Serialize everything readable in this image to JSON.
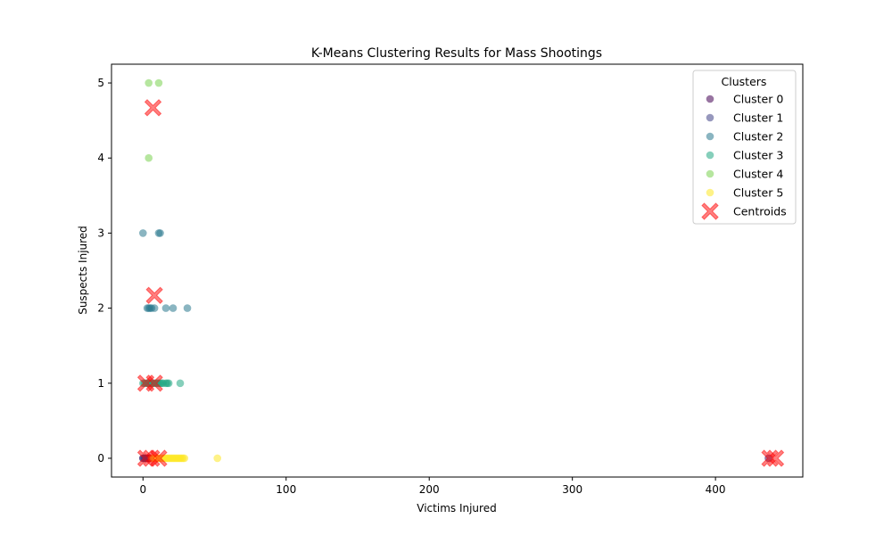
{
  "chart_data": {
    "type": "scatter",
    "title": "K-Means Clustering Results for Mass Shootings",
    "xlabel": "Victims Injured",
    "ylabel": "Suspects Injured",
    "xlim": [
      -22,
      461
    ],
    "ylim": [
      -0.25,
      5.25
    ],
    "xticks": [
      0,
      100,
      200,
      300,
      400
    ],
    "yticks": [
      0,
      1,
      2,
      3,
      4,
      5
    ],
    "grid": false,
    "legend": {
      "title": "Clusters",
      "placement": "top-right"
    },
    "series": [
      {
        "name": "Cluster 0",
        "color": "#440154",
        "points": [
          [
            0,
            0
          ],
          [
            1,
            0
          ],
          [
            2,
            0
          ],
          [
            3,
            0
          ],
          [
            4,
            0
          ],
          [
            5,
            0
          ],
          [
            437,
            0
          ]
        ]
      },
      {
        "name": "Cluster 1",
        "color": "#414487",
        "points": [
          [
            0,
            0
          ],
          [
            1,
            0
          ],
          [
            2,
            0
          ]
        ]
      },
      {
        "name": "Cluster 2",
        "color": "#2a788e",
        "points": [
          [
            0,
            3
          ],
          [
            11,
            3
          ],
          [
            12,
            3
          ],
          [
            3,
            2
          ],
          [
            4,
            2
          ],
          [
            5,
            2
          ],
          [
            6,
            2
          ],
          [
            8,
            2
          ],
          [
            16,
            2
          ],
          [
            21,
            2
          ],
          [
            31,
            2
          ]
        ]
      },
      {
        "name": "Cluster 3",
        "color": "#22a884",
        "points": [
          [
            0,
            1
          ],
          [
            1,
            1
          ],
          [
            2,
            1
          ],
          [
            3,
            1
          ],
          [
            4,
            1
          ],
          [
            5,
            1
          ],
          [
            6,
            1
          ],
          [
            7,
            1
          ],
          [
            8,
            1
          ],
          [
            9,
            1
          ],
          [
            10,
            1
          ],
          [
            11,
            1
          ],
          [
            12,
            1
          ],
          [
            13,
            1
          ],
          [
            14,
            1
          ],
          [
            16,
            1
          ],
          [
            17,
            1
          ],
          [
            18,
            1
          ],
          [
            26,
            1
          ]
        ]
      },
      {
        "name": "Cluster 4",
        "color": "#7ad151",
        "points": [
          [
            4,
            5
          ],
          [
            11,
            5
          ],
          [
            4,
            4
          ]
        ]
      },
      {
        "name": "Cluster 5",
        "color": "#fde725",
        "points": [
          [
            6,
            0
          ],
          [
            7,
            0
          ],
          [
            8,
            0
          ],
          [
            9,
            0
          ],
          [
            10,
            0
          ],
          [
            11,
            0
          ],
          [
            12,
            0
          ],
          [
            13,
            0
          ],
          [
            14,
            0
          ],
          [
            15,
            0
          ],
          [
            16,
            0
          ],
          [
            17,
            0
          ],
          [
            18,
            0
          ],
          [
            19,
            0
          ],
          [
            20,
            0
          ],
          [
            21,
            0
          ],
          [
            22,
            0
          ],
          [
            23,
            0
          ],
          [
            24,
            0
          ],
          [
            25,
            0
          ],
          [
            26,
            0
          ],
          [
            27,
            0
          ],
          [
            28,
            0
          ],
          [
            29,
            0
          ],
          [
            52,
            0
          ]
        ]
      }
    ],
    "centroids": {
      "name": "Centroids",
      "color": "#ff0000",
      "points": [
        [
          7,
          4.67
        ],
        [
          8,
          2.17
        ],
        [
          2,
          1
        ],
        [
          8,
          1
        ],
        [
          2,
          0
        ],
        [
          6,
          0
        ],
        [
          11,
          0
        ],
        [
          438,
          0
        ],
        [
          442,
          0
        ]
      ]
    }
  }
}
